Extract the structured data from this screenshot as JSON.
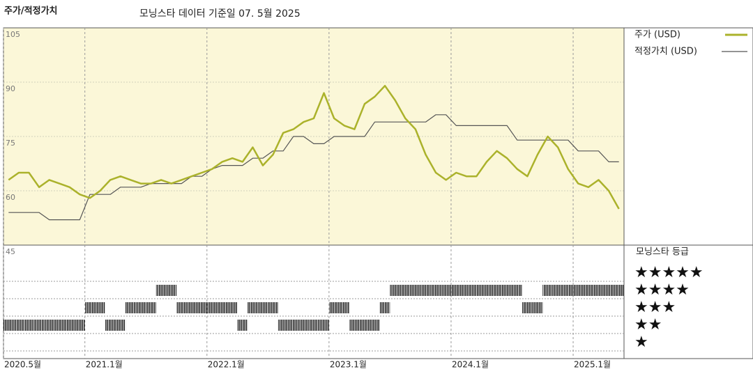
{
  "chart_data": {
    "type": "line",
    "title": "주가/적정가치",
    "subtitle": "모닝스타 데이터 기준일 07. 5월 2025",
    "x": [
      "2020-05",
      "2020-06",
      "2020-07",
      "2020-08",
      "2020-09",
      "2020-10",
      "2020-11",
      "2020-12",
      "2021-01",
      "2021-02",
      "2021-03",
      "2021-04",
      "2021-05",
      "2021-06",
      "2021-07",
      "2021-08",
      "2021-09",
      "2021-10",
      "2021-11",
      "2021-12",
      "2022-01",
      "2022-02",
      "2022-03",
      "2022-04",
      "2022-05",
      "2022-06",
      "2022-07",
      "2022-08",
      "2022-09",
      "2022-10",
      "2022-11",
      "2022-12",
      "2023-01",
      "2023-02",
      "2023-03",
      "2023-04",
      "2023-05",
      "2023-06",
      "2023-07",
      "2023-08",
      "2023-09",
      "2023-10",
      "2023-11",
      "2023-12",
      "2024-01",
      "2024-02",
      "2024-03",
      "2024-04",
      "2024-05",
      "2024-06",
      "2024-07",
      "2024-08",
      "2024-09",
      "2024-10",
      "2024-11",
      "2024-12",
      "2025-01",
      "2025-02",
      "2025-03",
      "2025-04",
      "2025-05"
    ],
    "xlim": [
      "2020-05",
      "2025-06"
    ],
    "xticks": [
      {
        "value": "2020-05",
        "label": "2020.5월"
      },
      {
        "value": "2021-01",
        "label": "2021.1월"
      },
      {
        "value": "2022-01",
        "label": "2022.1월"
      },
      {
        "value": "2023-01",
        "label": "2023.1월"
      },
      {
        "value": "2024-01",
        "label": "2024.1월"
      },
      {
        "value": "2025-01",
        "label": "2025.1월"
      }
    ],
    "ylim": [
      45,
      105
    ],
    "yticks": [
      45,
      60,
      75,
      90,
      105
    ],
    "series": [
      {
        "name": "주가 (USD)",
        "color": "#abb22b",
        "values": [
          63,
          65,
          65,
          61,
          63,
          62,
          61,
          59,
          58,
          60,
          63,
          64,
          63,
          62,
          62,
          63,
          62,
          63,
          64,
          65,
          66,
          68,
          69,
          68,
          72,
          67,
          70,
          76,
          77,
          79,
          80,
          87,
          80,
          78,
          77,
          84,
          86,
          89,
          85,
          80,
          77,
          70,
          65,
          63,
          65,
          64,
          64,
          68,
          71,
          69,
          66,
          64,
          70,
          75,
          72,
          66,
          62,
          61,
          63,
          60,
          55
        ]
      },
      {
        "name": "적정가치 (USD)",
        "color": "#555555",
        "values": [
          54,
          54,
          54,
          54,
          52,
          52,
          52,
          52,
          59,
          59,
          59,
          61,
          61,
          61,
          62,
          62,
          62,
          62,
          64,
          64,
          66,
          67,
          67,
          67,
          69,
          69,
          71,
          71,
          75,
          75,
          73,
          73,
          75,
          75,
          75,
          75,
          79,
          79,
          79,
          79,
          79,
          79,
          81,
          81,
          78,
          78,
          78,
          78,
          78,
          78,
          74,
          74,
          74,
          74,
          74,
          74,
          71,
          71,
          71,
          68,
          68
        ]
      }
    ],
    "ratings": {
      "title": "모닝스타 등급",
      "levels": [
        "★★★★★",
        "★★★★",
        "★★★",
        "★★",
        "★"
      ],
      "values": [
        2,
        2,
        2,
        2,
        2,
        2,
        2,
        2,
        3,
        3,
        2,
        2,
        3,
        3,
        3,
        4,
        4,
        3,
        3,
        3,
        3,
        3,
        3,
        2,
        3,
        3,
        3,
        2,
        2,
        2,
        2,
        2,
        3,
        3,
        2,
        2,
        2,
        3,
        4,
        4,
        4,
        4,
        4,
        4,
        4,
        4,
        4,
        4,
        4,
        4,
        4,
        3,
        3,
        4,
        4,
        4,
        4,
        4,
        4,
        4,
        4
      ]
    }
  }
}
